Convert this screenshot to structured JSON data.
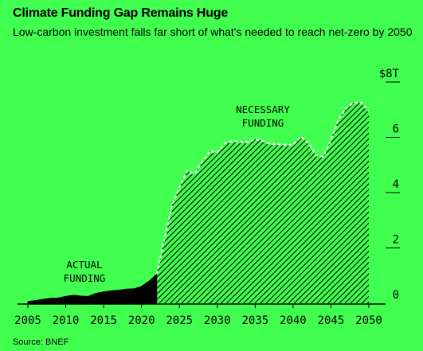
{
  "title": "Climate Funding Gap Remains Huge",
  "subtitle": "Low-carbon investment falls far short of what's needed to reach net-zero by 2050",
  "source": "Source: BNEF",
  "colors": {
    "background": "#41ff4f",
    "actual": "#000000",
    "necessary_outline": "#ffffff",
    "necessary_hatch": "#000000"
  },
  "chart_data": {
    "type": "area",
    "x_ticks": [
      "2005",
      "2010",
      "2015",
      "2020",
      "2025",
      "2030",
      "2035",
      "2040",
      "2045",
      "2050"
    ],
    "y_ticks": [
      "0",
      "2",
      "4",
      "6",
      "$8T"
    ],
    "xlim": [
      2004,
      2052
    ],
    "ylim": [
      0,
      8
    ],
    "grid": true,
    "annotations": [
      {
        "lines": [
          "NECESSARY",
          "FUNDING"
        ],
        "series": "necessary"
      },
      {
        "lines": [
          "ACTUAL",
          "FUNDING"
        ],
        "series": "actual"
      }
    ],
    "series": [
      {
        "key": "actual",
        "x": [
          2005,
          2006,
          2007,
          2008,
          2009,
          2010,
          2011,
          2012,
          2013,
          2014,
          2015,
          2016,
          2017,
          2018,
          2019,
          2020,
          2021,
          2022
        ],
        "y": [
          0.06,
          0.1,
          0.14,
          0.18,
          0.19,
          0.25,
          0.29,
          0.26,
          0.25,
          0.36,
          0.41,
          0.45,
          0.47,
          0.51,
          0.52,
          0.61,
          0.8,
          1.05
        ]
      },
      {
        "key": "necessary",
        "x": [
          2022,
          2023,
          2024,
          2025,
          2026,
          2027,
          2028,
          2029,
          2030,
          2031,
          2032,
          2033,
          2034,
          2035,
          2036,
          2037,
          2038,
          2039,
          2040,
          2041,
          2042,
          2043,
          2044,
          2045,
          2046,
          2047,
          2048,
          2049,
          2050
        ],
        "y": [
          1.05,
          2.3,
          3.5,
          4.2,
          4.78,
          4.68,
          5.1,
          5.5,
          5.45,
          5.78,
          5.87,
          5.84,
          5.82,
          5.93,
          5.87,
          5.76,
          5.75,
          5.73,
          5.72,
          6.02,
          5.8,
          5.35,
          5.3,
          5.9,
          6.65,
          7.05,
          7.25,
          7.25,
          6.95
        ]
      }
    ]
  }
}
